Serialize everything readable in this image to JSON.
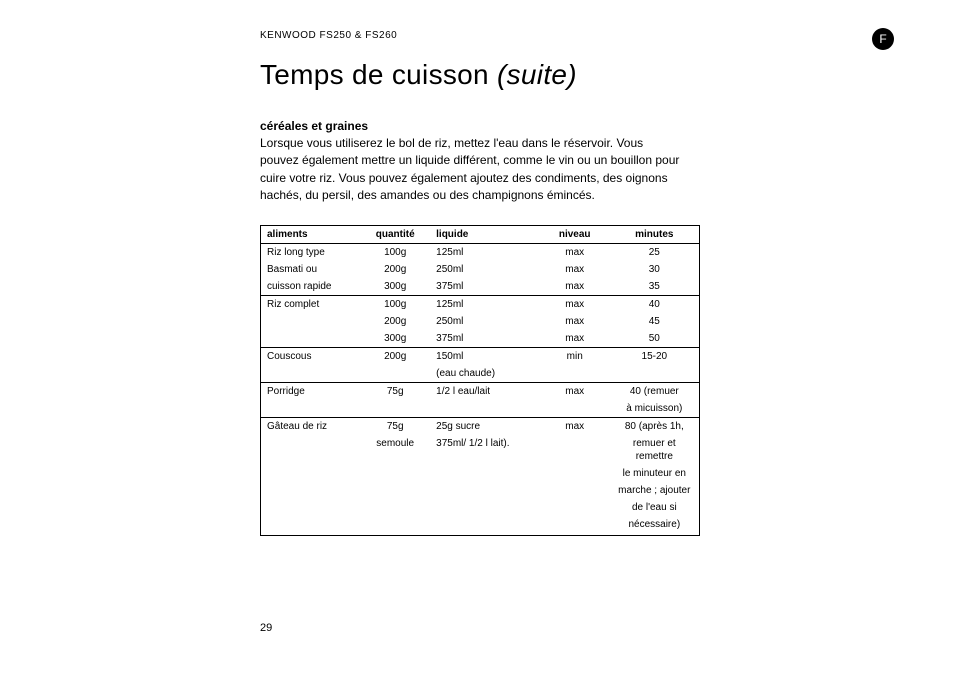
{
  "header": {
    "product": "KENWOOD FS250 & FS260",
    "lang_badge": "F"
  },
  "title": {
    "main": "Temps de cuisson ",
    "suite": "(suite)"
  },
  "section": {
    "heading": "céréales et graines",
    "intro": "Lorsque vous utiliserez le bol de riz, mettez l'eau dans le réservoir. Vous pouvez également mettre un liquide différent, comme le vin ou un bouillon pour cuire votre riz.  Vous pouvez également ajoutez des condiments, des oignons hachés, du persil, des amandes ou des champignons émincés."
  },
  "table": {
    "columns": {
      "aliments": "aliments",
      "quantite": "quantité",
      "liquide": "liquide",
      "niveau": "niveau",
      "minutes": "minutes"
    },
    "groups": [
      {
        "rows": [
          {
            "aliments": "Riz long type",
            "quantite": "100g",
            "liquide": "125ml",
            "niveau": "max",
            "minutes": "25"
          },
          {
            "aliments": "Basmati ou",
            "quantite": "200g",
            "liquide": "250ml",
            "niveau": "max",
            "minutes": "30"
          },
          {
            "aliments": "cuisson rapide",
            "quantite": "300g",
            "liquide": "375ml",
            "niveau": "max",
            "minutes": "35"
          }
        ]
      },
      {
        "rows": [
          {
            "aliments": "Riz complet",
            "quantite": "100g",
            "liquide": "125ml",
            "niveau": "max",
            "minutes": "40"
          },
          {
            "aliments": "",
            "quantite": "200g",
            "liquide": "250ml",
            "niveau": "max",
            "minutes": "45"
          },
          {
            "aliments": "",
            "quantite": "300g",
            "liquide": "375ml",
            "niveau": "max",
            "minutes": "50"
          }
        ]
      },
      {
        "rows": [
          {
            "aliments": "Couscous",
            "quantite": "200g",
            "liquide": "150ml",
            "niveau": "min",
            "minutes": "15-20"
          },
          {
            "aliments": "",
            "quantite": "",
            "liquide": "(eau chaude)",
            "niveau": "",
            "minutes": ""
          }
        ]
      },
      {
        "rows": [
          {
            "aliments": "Porridge",
            "quantite": "75g",
            "liquide": "1/2 l eau/lait",
            "niveau": "max",
            "minutes": "40 (remuer"
          },
          {
            "aliments": "",
            "quantite": "",
            "liquide": "",
            "niveau": "",
            "minutes": "à micuisson)"
          }
        ]
      },
      {
        "rows": [
          {
            "aliments": "Gâteau de riz",
            "quantite": "75g",
            "liquide": "25g sucre",
            "niveau": "max",
            "minutes": "80 (après 1h,"
          },
          {
            "aliments": "",
            "quantite": "semoule",
            "liquide": "375ml/ 1/2 l lait).",
            "niveau": "",
            "minutes": "remuer et remettre"
          },
          {
            "aliments": "",
            "quantite": "",
            "liquide": "",
            "niveau": "",
            "minutes": "le minuteur en"
          },
          {
            "aliments": "",
            "quantite": "",
            "liquide": "",
            "niveau": "",
            "minutes": "marche ; ajouter"
          },
          {
            "aliments": "",
            "quantite": "",
            "liquide": "",
            "niveau": "",
            "minutes": "de l'eau si"
          },
          {
            "aliments": "",
            "quantite": "",
            "liquide": "",
            "niveau": "",
            "minutes": "nécessaire)"
          }
        ]
      }
    ]
  },
  "page_number": "29",
  "styling": {
    "background_color": "#ffffff",
    "text_color": "#000000",
    "title_fontsize": 28,
    "body_fontsize": 12,
    "table_fontsize": 10,
    "border_color": "#000000"
  }
}
